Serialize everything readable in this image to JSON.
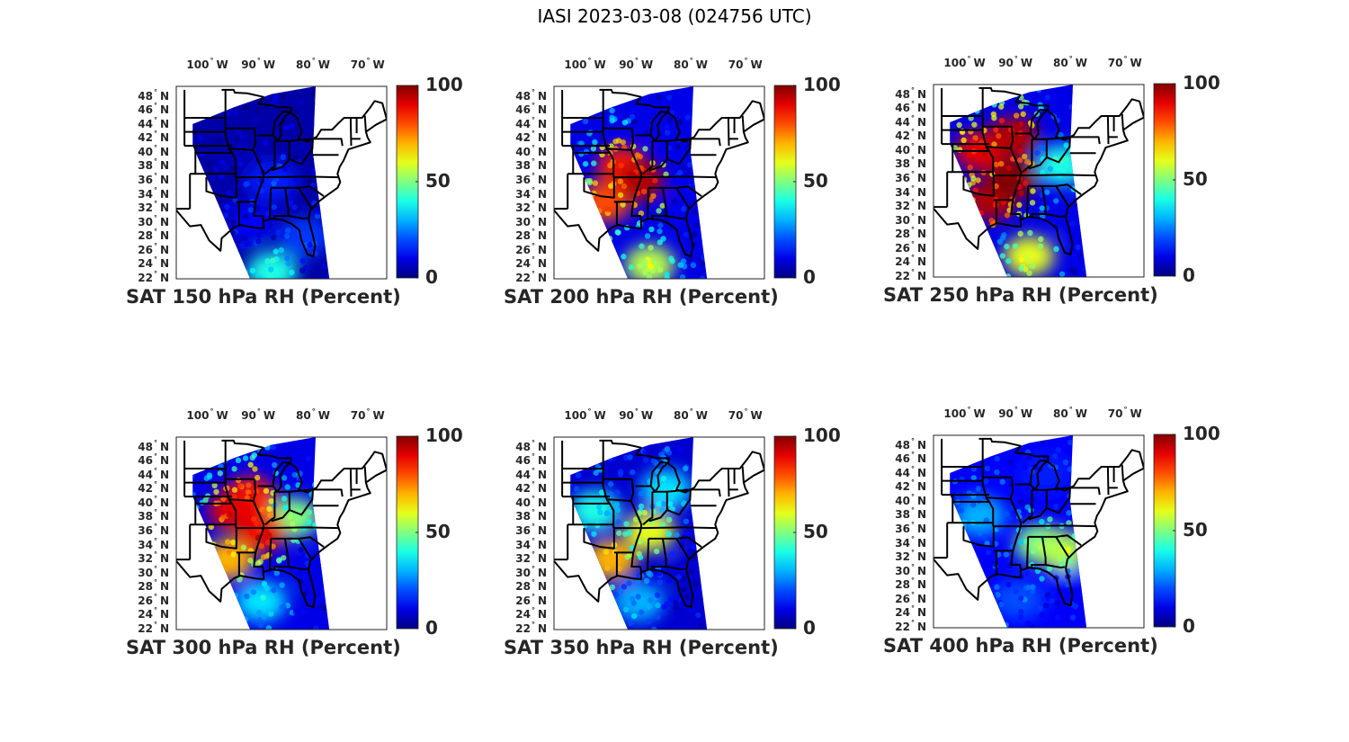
{
  "figure": {
    "title": "IASI 2023-03-08 (024756 UTC)"
  },
  "chart_data": [
    {
      "type": "heatmap",
      "title": "SAT 150 hPa RH (Percent)",
      "variable": "Relative Humidity",
      "level_hPa": 150,
      "units": "Percent",
      "colormap": "jet",
      "clim": [
        0,
        100
      ],
      "colorbar_ticks": [
        "0",
        "50",
        "100"
      ],
      "lon_ticks": [
        "100° W",
        "90° W",
        "80° W",
        "70° W"
      ],
      "lat_ticks": [
        "48° N",
        "46° N",
        "44° N",
        "42° N",
        "40° N",
        "38° N",
        "36° N",
        "34° N",
        "32° N",
        "30° N",
        "28° N",
        "26° N",
        "24° N",
        "22° N"
      ],
      "summary": "Mostly very dry (~5-15%) across entire swath; slight increases (~25-45%) near Gulf south edge",
      "regions": [
        {
          "lon": -95,
          "lat": 40,
          "rh": 5
        },
        {
          "lon": -85,
          "lat": 44,
          "rh": 4
        },
        {
          "lon": -88,
          "lat": 36,
          "rh": 15
        },
        {
          "lon": -92,
          "lat": 30,
          "rh": 12
        },
        {
          "lon": -82,
          "lat": 28,
          "rh": 18
        },
        {
          "lon": -88,
          "lat": 23,
          "rh": 40
        }
      ]
    },
    {
      "type": "heatmap",
      "title": "SAT 200 hPa RH (Percent)",
      "variable": "Relative Humidity",
      "level_hPa": 200,
      "units": "Percent",
      "colormap": "jet",
      "clim": [
        0,
        100
      ],
      "colorbar_ticks": [
        "0",
        "50",
        "100"
      ],
      "lon_ticks": [
        "100° W",
        "90° W",
        "80° W",
        "70° W"
      ],
      "lat_ticks": [
        "48° N",
        "46° N",
        "44° N",
        "42° N",
        "40° N",
        "38° N",
        "36° N",
        "34° N",
        "32° N",
        "30° N",
        "28° N",
        "26° N",
        "24° N",
        "22° N"
      ],
      "summary": "Moist band (70-100%) over central plains / Mississippi valley; dry elsewhere",
      "regions": [
        {
          "lon": -93,
          "lat": 38,
          "rh": 85
        },
        {
          "lon": -90,
          "lat": 36,
          "rh": 95
        },
        {
          "lon": -96,
          "lat": 33,
          "rh": 80
        },
        {
          "lon": -84,
          "lat": 44,
          "rh": 10
        },
        {
          "lon": -80,
          "lat": 32,
          "rh": 10
        },
        {
          "lon": -88,
          "lat": 24,
          "rh": 55
        }
      ]
    },
    {
      "type": "heatmap",
      "title": "SAT 250 hPa RH (Percent)",
      "variable": "Relative Humidity",
      "level_hPa": 250,
      "units": "Percent",
      "colormap": "jet",
      "clim": [
        0,
        100
      ],
      "colorbar_ticks": [
        "0",
        "50",
        "100"
      ],
      "lon_ticks": [
        "100° W",
        "90° W",
        "80° W",
        "70° W"
      ],
      "lat_ticks": [
        "48° N",
        "46° N",
        "44° N",
        "42° N",
        "40° N",
        "38° N",
        "36° N",
        "34° N",
        "32° N",
        "30° N",
        "28° N",
        "26° N",
        "24° N",
        "22° N"
      ],
      "summary": "Widespread high RH (80-100%) over plains and Midwest; moderate over Gulf; dry over Southeast/Atlantic",
      "regions": [
        {
          "lon": -97,
          "lat": 40,
          "rh": 90
        },
        {
          "lon": -91,
          "lat": 42,
          "rh": 95
        },
        {
          "lon": -91,
          "lat": 36,
          "rh": 100
        },
        {
          "lon": -95,
          "lat": 33,
          "rh": 95
        },
        {
          "lon": -82,
          "lat": 38,
          "rh": 40
        },
        {
          "lon": -78,
          "lat": 30,
          "rh": 10
        },
        {
          "lon": -88,
          "lat": 25,
          "rh": 60
        }
      ]
    },
    {
      "type": "heatmap",
      "title": "SAT 300 hPa RH (Percent)",
      "variable": "Relative Humidity",
      "level_hPa": 300,
      "units": "Percent",
      "colormap": "jet",
      "clim": [
        0,
        100
      ],
      "colorbar_ticks": [
        "0",
        "50",
        "100"
      ],
      "lon_ticks": [
        "100° W",
        "90° W",
        "80° W",
        "70° W"
      ],
      "lat_ticks": [
        "48° N",
        "46° N",
        "44° N",
        "42° N",
        "40° N",
        "38° N",
        "36° N",
        "34° N",
        "32° N",
        "30° N",
        "28° N",
        "26° N",
        "24° N",
        "22° N"
      ],
      "summary": "High RH (80-95%) over central US with gaps (missing data); moderate 30-50% elsewhere; dry over Southeast",
      "regions": [
        {
          "lon": -92,
          "lat": 41,
          "rh": 85
        },
        {
          "lon": -95,
          "lat": 39,
          "rh": 90
        },
        {
          "lon": -90,
          "lat": 36,
          "rh": 90
        },
        {
          "lon": -96,
          "lat": 32,
          "rh": 70
        },
        {
          "lon": -84,
          "lat": 38,
          "rh": 50
        },
        {
          "lon": -80,
          "lat": 30,
          "rh": 10
        },
        {
          "lon": -90,
          "lat": 26,
          "rh": 35
        }
      ]
    },
    {
      "type": "heatmap",
      "title": "SAT 350 hPa RH (Percent)",
      "variable": "Relative Humidity",
      "level_hPa": 350,
      "units": "Percent",
      "colormap": "jet",
      "clim": [
        0,
        100
      ],
      "colorbar_ticks": [
        "0",
        "50",
        "100"
      ],
      "lon_ticks": [
        "100° W",
        "90° W",
        "80° W",
        "70° W"
      ],
      "lat_ticks": [
        "48° N",
        "46° N",
        "44° N",
        "42° N",
        "40° N",
        "38° N",
        "36° N",
        "34° N",
        "32° N",
        "30° N",
        "28° N",
        "26° N",
        "24° N",
        "22° N"
      ],
      "summary": "Moderate RH (40-70%) over Mississippi valley and Tennessee; large missing-data gaps over plains; dry Southeast coast",
      "regions": [
        {
          "lon": -88,
          "lat": 36,
          "rh": 60
        },
        {
          "lon": -95,
          "lat": 32,
          "rh": 70
        },
        {
          "lon": -98,
          "lat": 39,
          "rh": 40
        },
        {
          "lon": -85,
          "lat": 42,
          "rh": 35
        },
        {
          "lon": -80,
          "lat": 30,
          "rh": 8
        },
        {
          "lon": -90,
          "lat": 26,
          "rh": 30
        }
      ]
    },
    {
      "type": "heatmap",
      "title": "SAT 400 hPa RH (Percent)",
      "variable": "Relative Humidity",
      "level_hPa": 400,
      "units": "Percent",
      "colormap": "jet",
      "clim": [
        0,
        100
      ],
      "colorbar_ticks": [
        "0",
        "50",
        "100"
      ],
      "lon_ticks": [
        "100° W",
        "90° W",
        "80° W",
        "70° W"
      ],
      "lat_ticks": [
        "48° N",
        "46° N",
        "44° N",
        "42° N",
        "40° N",
        "38° N",
        "36° N",
        "34° N",
        "32° N",
        "30° N",
        "28° N",
        "26° N",
        "24° N",
        "22° N"
      ],
      "summary": "Generally low-moderate RH (20-55%); slightly higher over Southeast states; missing data over plains",
      "regions": [
        {
          "lon": -86,
          "lat": 34,
          "rh": 50
        },
        {
          "lon": -82,
          "lat": 33,
          "rh": 55
        },
        {
          "lon": -97,
          "lat": 38,
          "rh": 30
        },
        {
          "lon": -85,
          "lat": 44,
          "rh": 15
        },
        {
          "lon": -80,
          "lat": 28,
          "rh": 12
        },
        {
          "lon": -90,
          "lat": 26,
          "rh": 20
        }
      ]
    }
  ]
}
